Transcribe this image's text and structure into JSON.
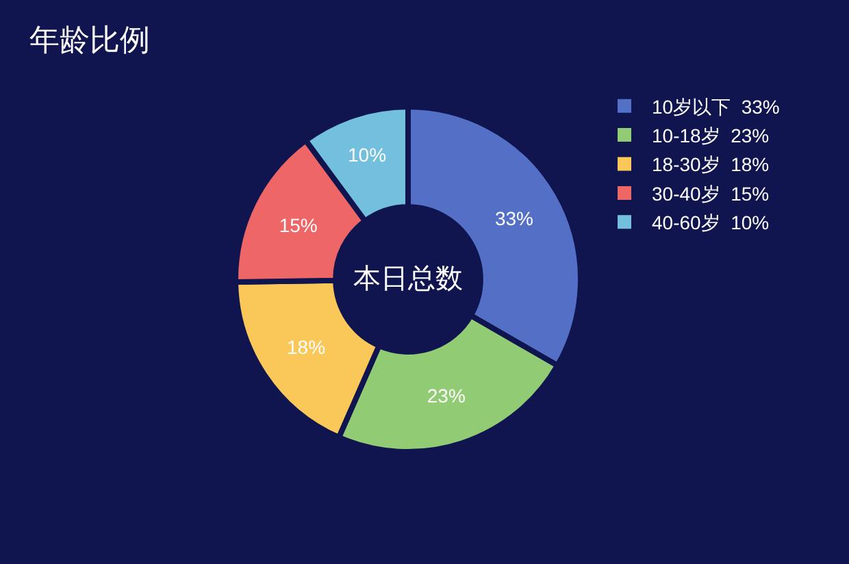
{
  "chart_data": {
    "type": "donut",
    "title": "年龄比例",
    "categories": [
      "10岁以下",
      "10-18岁",
      "18-30岁",
      "30-40岁",
      "40-60岁"
    ],
    "values": [
      33,
      23,
      18,
      15,
      10
    ],
    "value_labels": [
      "33%",
      "23%",
      "18%",
      "15%",
      "10%"
    ],
    "colors": [
      "#5470c6",
      "#91cc75",
      "#fac858",
      "#ee6666",
      "#73c0de"
    ],
    "annotations": [
      "本日总数"
    ],
    "legend": "right"
  }
}
